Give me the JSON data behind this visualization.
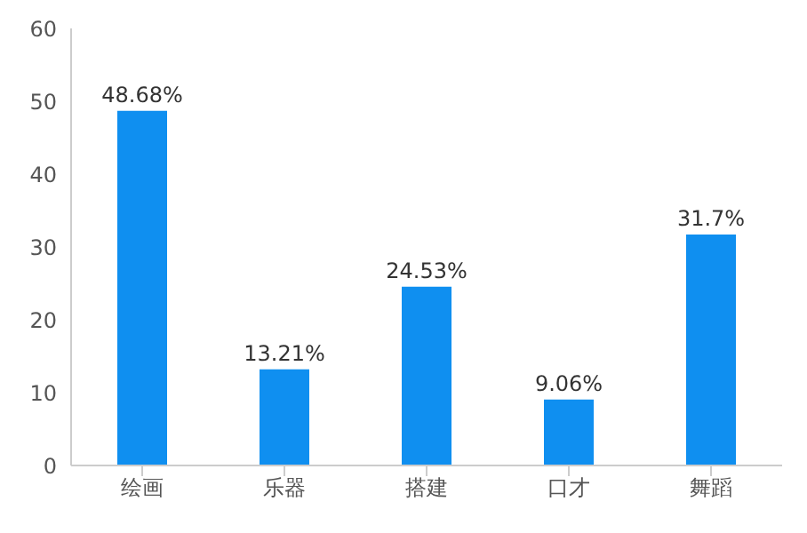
{
  "chart_data": {
    "type": "bar",
    "categories": [
      "绘画",
      "乐器",
      "搭建",
      "口才",
      "舞蹈"
    ],
    "values": [
      48.68,
      13.21,
      24.53,
      9.06,
      31.7
    ],
    "value_labels": [
      "48.68%",
      "13.21%",
      "24.53%",
      "9.06%",
      "31.7%"
    ],
    "color": "#0f8ff0",
    "ylim": [
      0,
      60
    ],
    "yticks": [
      0,
      10,
      20,
      30,
      40,
      50,
      60
    ],
    "grid": false
  }
}
